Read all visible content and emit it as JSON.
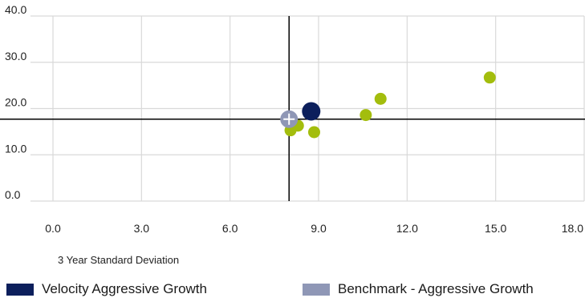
{
  "chart_data": {
    "type": "scatter",
    "title": "",
    "xlabel": "3 Year Standard Deviation",
    "ylabel": "",
    "xlim": [
      0,
      18
    ],
    "ylim": [
      0,
      40
    ],
    "x_ticks": [
      "0.0",
      "3.0",
      "6.0",
      "9.0",
      "12.0",
      "15.0",
      "18.0"
    ],
    "y_ticks": [
      "0.0",
      "10.0",
      "20.0",
      "30.0",
      "40.0"
    ],
    "grid": true,
    "reference_lines": {
      "x": 8.0,
      "y": 17.7
    },
    "series": [
      {
        "name": "Velocity Aggressive Growth",
        "color": "#0c1f5c",
        "points": [
          {
            "x": 8.75,
            "y": 19.4
          }
        ]
      },
      {
        "name": "Benchmark - Aggressive Growth",
        "color": "#8f97b6",
        "points": [
          {
            "x": 8.0,
            "y": 17.7
          }
        ]
      },
      {
        "color": "#a3bd0d",
        "points": [
          {
            "x": 8.05,
            "y": 15.3
          },
          {
            "x": 8.3,
            "y": 16.3
          },
          {
            "x": 8.85,
            "y": 14.9
          },
          {
            "x": 10.6,
            "y": 18.6
          },
          {
            "x": 11.1,
            "y": 22.1
          },
          {
            "x": 14.8,
            "y": 26.7
          }
        ]
      }
    ]
  }
}
